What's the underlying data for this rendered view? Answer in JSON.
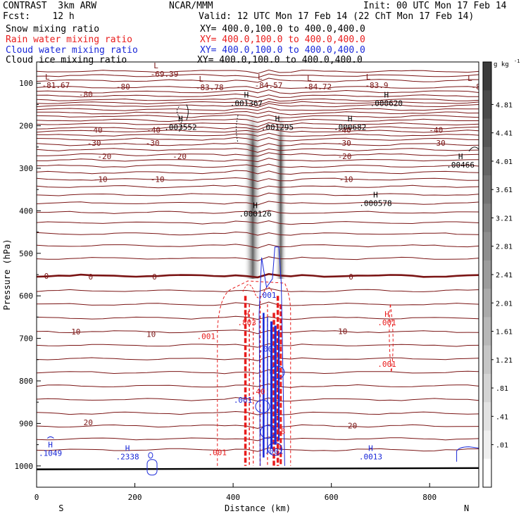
{
  "header": {
    "model": "CONTRAST",
    "resolution": "3km ARW",
    "org": "NCAR/MMM",
    "init": "Init: 00 UTC Mon 17 Feb 14",
    "fcst_label": "Fcst:",
    "fcst_value": "12 h",
    "valid": "Valid: 12 UTC Mon 17 Feb 14 (22 ChT Mon 17 Feb 14)"
  },
  "fields": [
    {
      "name": "Snow mixing ratio",
      "xy": "XY= 400.0,100.0 to 400.0,400.0",
      "color": "#000000"
    },
    {
      "name": "Rain water mixing ratio",
      "xy": "XY= 400.0,100.0 to 400.0,400.0",
      "color": "#e81c1c"
    },
    {
      "name": "Cloud water mixing ratio",
      "xy": "XY= 400.0,100.0 to 400.0,400.0",
      "color": "#1a28d8"
    },
    {
      "name": "Cloud ice mixing ratio",
      "xy": "XY= 400.0,100.0 to 400.0,400.0",
      "color": "#000000"
    }
  ],
  "chart_data": {
    "type": "contour-cross-section",
    "xlabel": "Distance (km)",
    "ylabel": "Pressure (hPa)",
    "xlim": [
      0,
      900
    ],
    "ylim": [
      1050,
      50
    ],
    "x_ticks": [
      0,
      200,
      400,
      600,
      800
    ],
    "y_ticks": [
      100,
      200,
      300,
      400,
      500,
      600,
      700,
      800,
      900,
      1000
    ],
    "end_labels": {
      "left": "S",
      "right": "N"
    },
    "colorbar": {
      "unit": "g kg",
      "unit_exp": "-1",
      "labels": [
        "4.81",
        "4.41",
        "4.01",
        "3.61",
        "3.21",
        "2.81",
        "2.41",
        "2.01",
        "1.61",
        "1.21",
        ".81",
        ".41",
        ".01"
      ],
      "colors": [
        "#3c3c3c",
        "#4a4a4a",
        "#575757",
        "#656565",
        "#737373",
        "#818181",
        "#8e8e8e",
        "#9c9c9c",
        "#aaaaaa",
        "#b8b8b8",
        "#c6c6c6",
        "#d4d4d4",
        "#e2e2e2",
        "#efefef",
        "#ffffff"
      ]
    },
    "temperature_contours": {
      "color": "#7a1414",
      "zero_isotherm_p": 553,
      "levels": [
        {
          "value": "-80",
          "p": 126
        },
        {
          "value": "-40",
          "p": 210
        },
        {
          "value": "-30",
          "p": 240
        },
        {
          "value": "-20",
          "p": 272
        },
        {
          "value": "-10",
          "p": 326
        },
        {
          "value": "0",
          "p": 553
        },
        {
          "value": "10",
          "p": 687
        },
        {
          "value": "20",
          "p": 898
        }
      ]
    },
    "temperature_labels": [
      {
        "text": "-80",
        "x": 100,
        "p": 126
      },
      {
        "text": "-80",
        "x": 176,
        "p": 108
      },
      {
        "text": "-40",
        "x": 120,
        "p": 210
      },
      {
        "text": "-40",
        "x": 238,
        "p": 210
      },
      {
        "text": "-40",
        "x": 626,
        "p": 210
      },
      {
        "text": "-40",
        "x": 813,
        "p": 210
      },
      {
        "text": "-30",
        "x": 117,
        "p": 240
      },
      {
        "text": "-30",
        "x": 236,
        "p": 240
      },
      {
        "text": "-30",
        "x": 626,
        "p": 240
      },
      {
        "text": "-30",
        "x": 818,
        "p": 240
      },
      {
        "text": "-20",
        "x": 138,
        "p": 272
      },
      {
        "text": "-20",
        "x": 291,
        "p": 272
      },
      {
        "text": "-20",
        "x": 627,
        "p": 272
      },
      {
        "text": "-10",
        "x": 130,
        "p": 326
      },
      {
        "text": "-10",
        "x": 246,
        "p": 326
      },
      {
        "text": "-10",
        "x": 630,
        "p": 326
      },
      {
        "text": "0",
        "x": 20,
        "p": 553
      },
      {
        "text": "0",
        "x": 110,
        "p": 555
      },
      {
        "text": "0",
        "x": 240,
        "p": 555
      },
      {
        "text": "0",
        "x": 640,
        "p": 555
      },
      {
        "text": "10",
        "x": 80,
        "p": 684
      },
      {
        "text": "10",
        "x": 233,
        "p": 690
      },
      {
        "text": "10",
        "x": 623,
        "p": 683
      },
      {
        "text": "20",
        "x": 105,
        "p": 898
      },
      {
        "text": "20",
        "x": 643,
        "p": 905
      }
    ],
    "pressure_minima": [
      {
        "label": "L",
        "value": "-81.67",
        "x": 22,
        "p": 85,
        "color": "#7a1414"
      },
      {
        "label": "L",
        "value": "-69.39",
        "x": 243,
        "p": 58,
        "color": "#7a1414"
      },
      {
        "label": "L",
        "value": "-83.78",
        "x": 335,
        "p": 90,
        "color": "#7a1414"
      },
      {
        "label": "L",
        "value": "-84.57",
        "x": 455,
        "p": 85,
        "color": "#7a1414"
      },
      {
        "label": "L",
        "value": "-84.72",
        "x": 555,
        "p": 88,
        "color": "#7a1414"
      },
      {
        "label": "L",
        "value": "-83.9",
        "x": 675,
        "p": 85,
        "color": "#7a1414"
      },
      {
        "label": "L",
        "value": "-81",
        "x": 882,
        "p": 88,
        "color": "#7a1414"
      }
    ],
    "extrema_labels": [
      {
        "label": "H",
        "value": ".001367",
        "x": 427,
        "p": 137,
        "color": "#000000"
      },
      {
        "label": "H",
        "value": ".000620",
        "x": 712,
        "p": 137,
        "color": "#000000"
      },
      {
        "label": "H",
        "value": ".003552",
        "x": 293,
        "p": 193,
        "color": "#000000"
      },
      {
        "label": "H",
        "value": ".001295",
        "x": 490,
        "p": 193,
        "color": "#000000"
      },
      {
        "label": "H",
        "value": ".000682",
        "x": 638,
        "p": 193,
        "color": "#000000"
      },
      {
        "label": "H",
        "value": ".00466",
        "x": 863,
        "p": 282,
        "color": "#000000"
      },
      {
        "label": "H",
        "value": ".000578",
        "x": 690,
        "p": 372,
        "color": "#000000"
      },
      {
        "label": "H",
        "value": ".000126",
        "x": 445,
        "p": 397,
        "color": "#000000"
      },
      {
        "label": "H",
        "value": ".803",
        "x": 428,
        "p": 653,
        "color": "#e81c1c"
      },
      {
        "label": "H",
        "value": ".001",
        "x": 713,
        "p": 653,
        "color": "#e81c1c"
      },
      {
        "label": "H",
        "value": ".1049",
        "x": 28,
        "p": 960,
        "color": "#1a28d8"
      },
      {
        "label": "H",
        "value": ".2338",
        "x": 185,
        "p": 968,
        "color": "#1a28d8"
      },
      {
        "label": "H",
        "value": ".0013",
        "x": 680,
        "p": 968,
        "color": "#1a28d8"
      }
    ],
    "contour_labels": [
      {
        "text": ".001",
        "x": 345,
        "p": 695,
        "color": "#e81c1c"
      },
      {
        "text": ".001",
        "x": 713,
        "p": 760,
        "color": "#e81c1c"
      },
      {
        "text": ".001",
        "x": 368,
        "p": 968,
        "color": "#e81c1c"
      },
      {
        "text": ".001",
        "x": 469,
        "p": 598,
        "color": "#1a28d8"
      },
      {
        "text": ".001",
        "x": 420,
        "p": 845,
        "color": "#1a28d8"
      },
      {
        "text": ".001",
        "x": 471,
        "p": 725,
        "color": "#1a28d8"
      },
      {
        "text": ".001",
        "x": 483,
        "p": 965,
        "color": "#1a28d8"
      },
      {
        "text": ".40",
        "x": 451,
        "p": 825,
        "color": "#e81c1c"
      },
      {
        "text": ".18",
        "x": 492,
        "p": 918,
        "color": "#e81c1c"
      }
    ],
    "snow_plumes": [
      {
        "x_center": 440,
        "p_top": 170,
        "p_bottom": 560,
        "halfwidth_km": 18
      },
      {
        "x_center": 497,
        "p_top": 170,
        "p_bottom": 560,
        "halfwidth_km": 12
      }
    ]
  }
}
